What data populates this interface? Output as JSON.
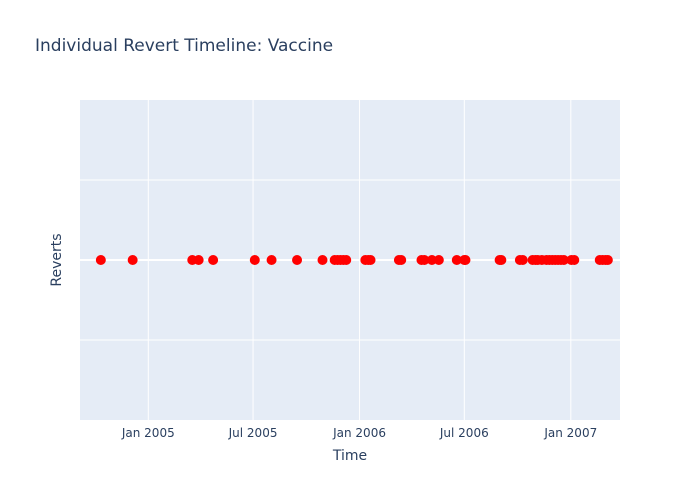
{
  "chart_data": {
    "type": "scatter",
    "title": "Individual Revert Timeline: Vaccine",
    "xlabel": "Time",
    "ylabel": "Reverts",
    "x_axis_type": "date",
    "xlim": [
      "2004-09-05",
      "2007-03-27"
    ],
    "ylim": [
      -1,
      1
    ],
    "x_ticks": [
      {
        "date": "2005-01-01",
        "label": "Jan 2005"
      },
      {
        "date": "2005-07-01",
        "label": "Jul 2005"
      },
      {
        "date": "2006-01-01",
        "label": "Jan 2006"
      },
      {
        "date": "2006-07-01",
        "label": "Jul 2006"
      },
      {
        "date": "2007-01-01",
        "label": "Jan 2007"
      }
    ],
    "y_gridlines": [
      -0.5,
      0,
      0.5
    ],
    "y_tick_labels_shown": false,
    "grid": true,
    "legend": "none",
    "marker_color": "#ff0000",
    "plot_background": "#e5ecf6",
    "series": [
      {
        "x": [
          "2004-10-11",
          "2004-12-05",
          "2005-03-18",
          "2005-03-29",
          "2005-04-23",
          "2005-07-04",
          "2005-08-02",
          "2005-09-15",
          "2005-10-29",
          "2005-11-19",
          "2005-11-24",
          "2005-11-29",
          "2005-12-04",
          "2005-12-09",
          "2006-01-11",
          "2006-01-16",
          "2006-01-20",
          "2006-03-10",
          "2006-03-14",
          "2006-04-18",
          "2006-04-23",
          "2006-05-06",
          "2006-05-18",
          "2006-06-18",
          "2006-07-01",
          "2006-07-03",
          "2006-08-31",
          "2006-09-03",
          "2006-10-05",
          "2006-10-10",
          "2006-10-27",
          "2006-11-01",
          "2006-11-05",
          "2006-11-12",
          "2006-11-20",
          "2006-11-25",
          "2006-11-30",
          "2006-12-05",
          "2006-12-10",
          "2006-12-15",
          "2006-12-20",
          "2007-01-02",
          "2007-01-07",
          "2007-02-20",
          "2007-02-25",
          "2007-03-02",
          "2007-03-06"
        ],
        "y": [
          0,
          0,
          0,
          0,
          0,
          0,
          0,
          0,
          0,
          0,
          0,
          0,
          0,
          0,
          0,
          0,
          0,
          0,
          0,
          0,
          0,
          0,
          0,
          0,
          0,
          0,
          0,
          0,
          0,
          0,
          0,
          0,
          0,
          0,
          0,
          0,
          0,
          0,
          0,
          0,
          0,
          0,
          0,
          0,
          0,
          0,
          0
        ]
      }
    ]
  }
}
